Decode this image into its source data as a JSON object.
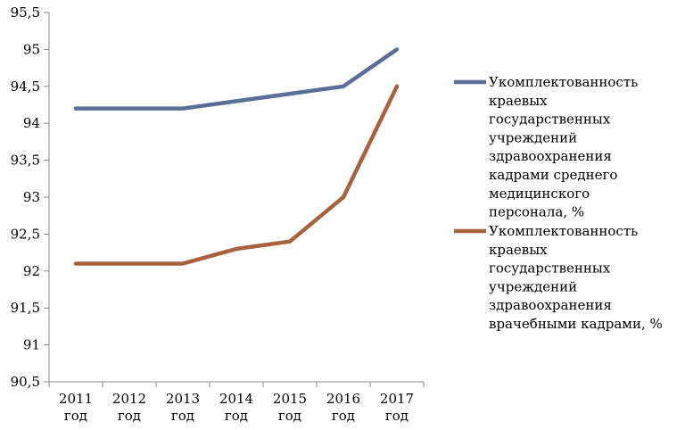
{
  "chart_data": {
    "type": "line",
    "categories": [
      [
        "2011",
        "год"
      ],
      [
        "2012",
        "год"
      ],
      [
        "2013",
        "год"
      ],
      [
        "2014",
        "год"
      ],
      [
        "2015",
        "год"
      ],
      [
        "2016",
        "год"
      ],
      [
        "2017",
        "год"
      ]
    ],
    "ylim": [
      90.5,
      95.5
    ],
    "yticks": [
      "95,5",
      "95",
      "94,5",
      "94",
      "93,5",
      "93",
      "92,5",
      "92",
      "91,5",
      "91",
      "90,5"
    ],
    "ytick_values": [
      95.5,
      95,
      94.5,
      94,
      93.5,
      93,
      92.5,
      92,
      91.5,
      91,
      90.5
    ],
    "grid": false,
    "legend_position": "right",
    "series": [
      {
        "name_lines": [
          "Укомплектованность",
          "краевых",
          "государственных",
          "учреждений",
          "здравоохранения",
          "кадрами среднего",
          "медицинского",
          "персонала, %"
        ],
        "values": [
          94.2,
          94.2,
          94.2,
          94.3,
          94.4,
          94.5,
          95.0
        ],
        "color": "#5b6e96"
      },
      {
        "name_lines": [
          "Укомплектованность",
          "краевых",
          "государственных",
          "учреждений",
          "здравоохранения",
          "врачебными кадрами, %"
        ],
        "values": [
          92.1,
          92.1,
          92.1,
          92.3,
          92.4,
          93.0,
          94.5
        ],
        "color": "#a8623d"
      }
    ]
  }
}
